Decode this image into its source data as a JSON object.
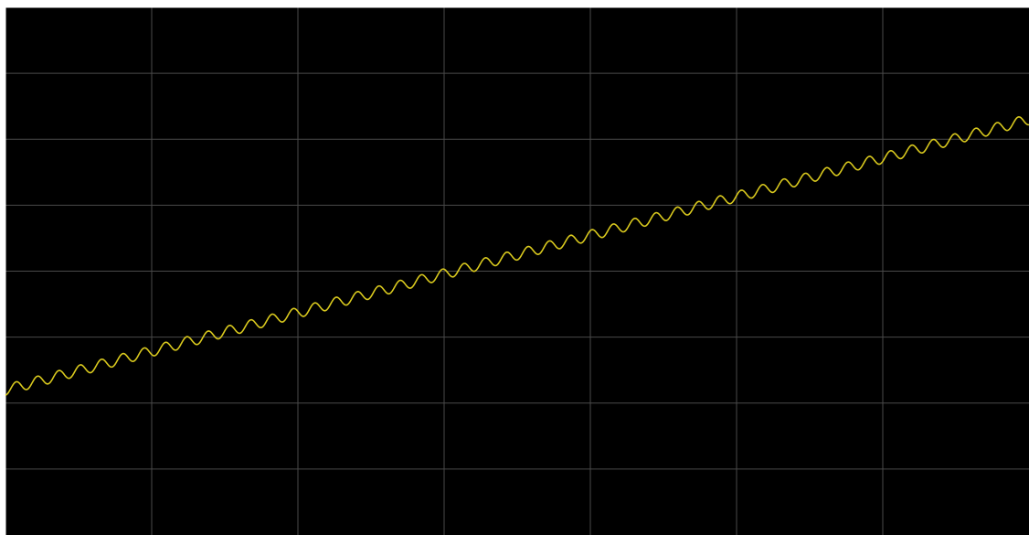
{
  "chart_data": {
    "type": "line",
    "title": "",
    "xlabel": "",
    "ylabel": "",
    "grid": true,
    "legend": "none",
    "xlim": [
      0,
      7
    ],
    "ylim": [
      0,
      8
    ],
    "x_divisions": 7,
    "y_divisions": 8,
    "series": [
      {
        "color": "#d8c81e",
        "trend": {
          "x_start": 0,
          "y_start": 2.2,
          "x_end": 7,
          "y_end": 6.3
        },
        "ripple": {
          "amplitude": 0.08,
          "cycles": 48
        }
      }
    ]
  },
  "colors": {
    "plot_background": "#000000",
    "grid": "#4a4a4a",
    "trace": "#d8c81e",
    "border": "#ffffff"
  }
}
